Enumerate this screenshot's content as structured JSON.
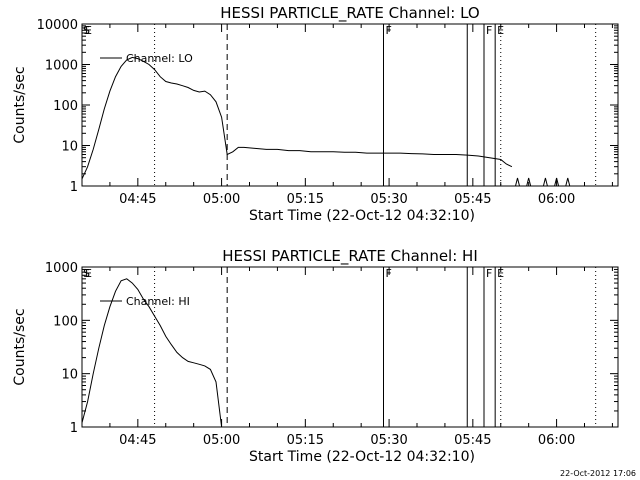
{
  "footer": {
    "stamp": "22-Oct-2012 17:06"
  },
  "chart_data": [
    {
      "type": "line",
      "title": "HESSI PARTICLE_RATE Channel: LO",
      "xlabel": "Start Time (22-Oct-12 04:32:10)",
      "ylabel": "Counts/sec",
      "yscale": "log",
      "ylim": [
        1,
        10000
      ],
      "xlim": [
        "04:35",
        "06:11"
      ],
      "x_ticks": [
        "04:45",
        "05:00",
        "05:15",
        "05:30",
        "05:45",
        "06:00"
      ],
      "y_ticks": [
        "1",
        "10",
        "100",
        "1000",
        "10000"
      ],
      "legend": "Channel: LO",
      "legend_position": "top-left",
      "grid": false,
      "series": [
        {
          "name": "Channel: LO",
          "x": [
            "04:35",
            "04:36",
            "04:37",
            "04:38",
            "04:39",
            "04:40",
            "04:41",
            "04:42",
            "04:43",
            "04:44",
            "04:45",
            "04:46",
            "04:47",
            "04:48",
            "04:49",
            "04:50",
            "04:51",
            "04:52",
            "04:53",
            "04:54",
            "04:55",
            "04:56",
            "04:57",
            "04:58",
            "04:59",
            "05:00",
            "05:01",
            "05:02",
            "05:03",
            "05:04",
            "05:06",
            "05:08",
            "05:10",
            "05:12",
            "05:14",
            "05:16",
            "05:18",
            "05:20",
            "05:22",
            "05:24",
            "05:26",
            "05:28",
            "05:30",
            "05:32",
            "05:34",
            "05:36",
            "05:38",
            "05:40",
            "05:42",
            "05:44",
            "05:46",
            "05:48",
            "05:50",
            "05:51",
            "05:52"
          ],
          "values": [
            1.5,
            3,
            8,
            25,
            80,
            220,
            500,
            900,
            1300,
            1500,
            1400,
            1200,
            1000,
            750,
            500,
            380,
            350,
            330,
            300,
            270,
            230,
            210,
            220,
            180,
            120,
            50,
            6,
            7,
            9,
            9,
            8.5,
            8,
            8,
            7.5,
            7.5,
            7,
            7,
            7,
            6.8,
            6.8,
            6.5,
            6.5,
            6.5,
            6.5,
            6.3,
            6.2,
            6,
            6,
            6,
            5.8,
            5.5,
            5,
            4.5,
            3.5,
            3
          ]
        }
      ],
      "flag_lines": [
        {
          "x": "04:48",
          "style": "dotted",
          "label": ""
        },
        {
          "x": "05:01",
          "style": "dashed",
          "label": ""
        },
        {
          "x": "05:29",
          "style": "solid",
          "label": "F"
        },
        {
          "x": "05:44",
          "style": "solid",
          "label": ""
        },
        {
          "x": "05:47",
          "style": "solid",
          "label": "F"
        },
        {
          "x": "05:49",
          "style": "solid",
          "label": "E"
        },
        {
          "x": "05:50",
          "style": "dotted",
          "label": ""
        },
        {
          "x": "06:07",
          "style": "dotted",
          "label": ""
        }
      ],
      "corner_labels": [
        "S",
        "E"
      ]
    },
    {
      "type": "line",
      "title": "HESSI PARTICLE_RATE Channel: HI",
      "xlabel": "Start Time (22-Oct-12 04:32:10)",
      "ylabel": "Counts/sec",
      "yscale": "log",
      "ylim": [
        1,
        1000
      ],
      "xlim": [
        "04:35",
        "06:11"
      ],
      "x_ticks": [
        "04:45",
        "05:00",
        "05:15",
        "05:30",
        "05:45",
        "06:00"
      ],
      "y_ticks": [
        "1",
        "10",
        "100",
        "1000"
      ],
      "legend": "Channel: HI",
      "legend_position": "top-left",
      "grid": false,
      "series": [
        {
          "name": "Channel: HI",
          "x": [
            "04:35",
            "04:36",
            "04:37",
            "04:38",
            "04:39",
            "04:40",
            "04:41",
            "04:42",
            "04:43",
            "04:44",
            "04:45",
            "04:46",
            "04:47",
            "04:48",
            "04:49",
            "04:50",
            "04:51",
            "04:52",
            "04:53",
            "04:54",
            "04:55",
            "04:56",
            "04:57",
            "04:58",
            "04:59",
            "05:00"
          ],
          "values": [
            1.2,
            3,
            10,
            30,
            80,
            180,
            350,
            550,
            600,
            500,
            380,
            250,
            180,
            120,
            80,
            50,
            35,
            25,
            20,
            17,
            16,
            15,
            14,
            12,
            7,
            1
          ]
        }
      ],
      "flag_lines": [
        {
          "x": "04:48",
          "style": "dotted",
          "label": ""
        },
        {
          "x": "05:01",
          "style": "dashed",
          "label": ""
        },
        {
          "x": "05:29",
          "style": "solid",
          "label": "F"
        },
        {
          "x": "05:44",
          "style": "solid",
          "label": ""
        },
        {
          "x": "05:47",
          "style": "solid",
          "label": "F"
        },
        {
          "x": "05:49",
          "style": "solid",
          "label": "E"
        },
        {
          "x": "05:50",
          "style": "dotted",
          "label": ""
        },
        {
          "x": "06:07",
          "style": "dotted",
          "label": ""
        }
      ],
      "corner_labels": [
        "S",
        "E"
      ]
    }
  ]
}
